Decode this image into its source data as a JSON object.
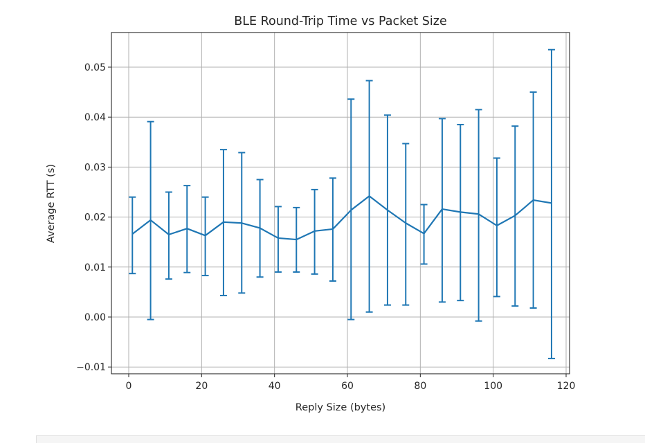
{
  "chart_data": {
    "type": "line",
    "title": "BLE Round-Trip Time vs Packet Size",
    "xlabel": "Reply Size (bytes)",
    "ylabel": "Average RTT (s)",
    "xlim": [
      -4.8,
      121.8
    ],
    "ylim": [
      -0.0112,
      0.0565
    ],
    "xticks": [
      0,
      20,
      40,
      60,
      80,
      100,
      120
    ],
    "xtick_labels": [
      "0",
      "20",
      "40",
      "60",
      "80",
      "100",
      "120"
    ],
    "yticks": [
      -0.01,
      0.0,
      0.01,
      0.02,
      0.03,
      0.04,
      0.05
    ],
    "ytick_labels": [
      "−0.01",
      "0.00",
      "0.01",
      "0.02",
      "0.03",
      "0.04",
      "0.05"
    ],
    "grid": true,
    "legend": null,
    "series": [
      {
        "name": "Average RTT",
        "color": "#1f77b4",
        "error_bars": true,
        "x": [
          1,
          6,
          11,
          16,
          21,
          26,
          31,
          36,
          41,
          46,
          51,
          56,
          61,
          66,
          71,
          76,
          81,
          86,
          91,
          96,
          101,
          106,
          111,
          116
        ],
        "y": [
          0.0166,
          0.0194,
          0.0165,
          0.0177,
          0.0163,
          0.019,
          0.0188,
          0.0178,
          0.0158,
          0.0155,
          0.0172,
          0.0176,
          0.0214,
          0.0242,
          0.0214,
          0.0188,
          0.0167,
          0.0216,
          0.021,
          0.0206,
          0.0183,
          0.0203,
          0.0234,
          0.0228
        ],
        "y_upper": [
          0.024,
          0.0391,
          0.025,
          0.0263,
          0.024,
          0.0335,
          0.0329,
          0.0275,
          0.0221,
          0.0219,
          0.0255,
          0.0278,
          0.0436,
          0.0473,
          0.0404,
          0.0347,
          0.0225,
          0.0397,
          0.0385,
          0.0415,
          0.0318,
          0.0382,
          0.045,
          0.0535
        ],
        "y_lower": [
          0.0087,
          -0.0005,
          0.0076,
          0.0089,
          0.0083,
          0.0043,
          0.0048,
          0.008,
          0.009,
          0.009,
          0.0086,
          0.0072,
          -0.0005,
          0.001,
          0.0024,
          0.0024,
          0.0106,
          0.003,
          0.0033,
          -0.0008,
          0.0041,
          0.0022,
          0.0018,
          -0.0083
        ]
      }
    ]
  },
  "colors": {
    "line": "#1f77b4",
    "grid": "#b0b0b0",
    "axis": "#262626",
    "background": "#ffffff"
  }
}
